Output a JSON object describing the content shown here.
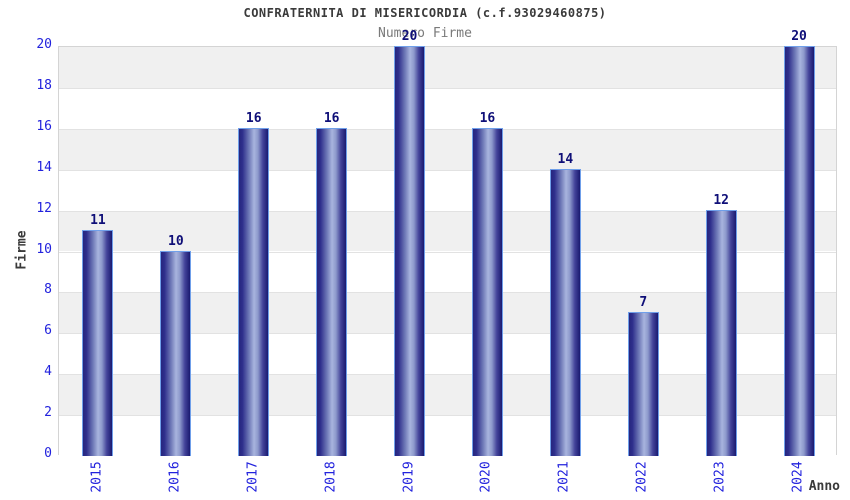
{
  "chart_data": {
    "type": "bar",
    "title": "CONFRATERNITA DI MISERICORDIA (c.f.93029460875)",
    "subtitle": "Numero Firme",
    "xlabel": "Anno",
    "ylabel": "Firme",
    "categories": [
      "2015",
      "2016",
      "2017",
      "2018",
      "2019",
      "2020",
      "2021",
      "2022",
      "2023",
      "2024"
    ],
    "values": [
      11,
      10,
      16,
      16,
      20,
      16,
      14,
      7,
      12,
      20
    ],
    "ylim": [
      0,
      20
    ],
    "yticks": [
      0,
      2,
      4,
      6,
      8,
      10,
      12,
      14,
      16,
      18,
      20
    ],
    "grid": "alternating-horizontal-bands-every-2-units",
    "legend": "none",
    "colors": {
      "title": "#3a3a3a",
      "subtitle": "#7a7a7a",
      "axis_label": "#3a3a3a",
      "tick_label": "#2222dd",
      "value_label": "#0f0f78",
      "bar_dark": "#26267e",
      "bar_mid": "#6a74b4",
      "bar_light": "#a8b4de",
      "bar_border": "#6f9fea",
      "band_gray": "#f0f0f0",
      "band_white": "#ffffff",
      "gridline": "#e2e2e2",
      "plot_border": "#d4d4d4"
    }
  }
}
